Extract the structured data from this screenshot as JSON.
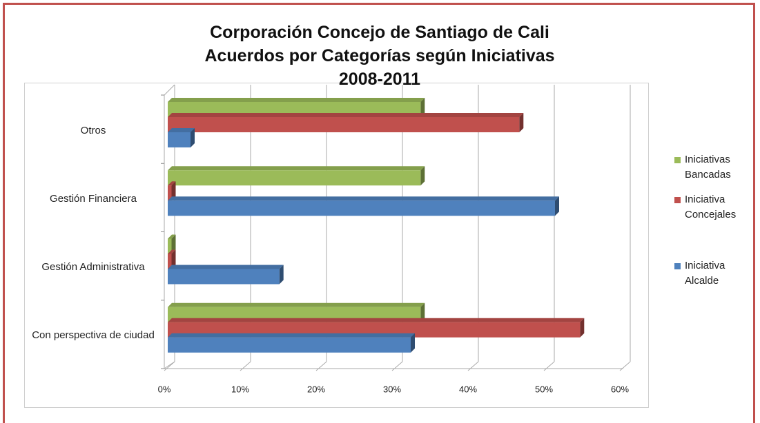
{
  "chart_data": {
    "type": "bar3d-horizontal",
    "title": "Corporación Concejo de Santiago de Cali\nAcuerdos por Categorías según Iniciativas\n2008-2011",
    "categories": [
      "Con perspectiva de ciudad",
      "Gestión Administrativa",
      "Gestión Financiera",
      "Otros"
    ],
    "series": [
      {
        "name": "Iniciativas Bancadas",
        "color": "#9bbb59",
        "values": [
          33.3,
          0.5,
          33.3,
          33.3
        ]
      },
      {
        "name": "Iniciativa Concejales",
        "color": "#c0504d",
        "values": [
          54.3,
          0.5,
          0.5,
          46.3
        ]
      },
      {
        "name": "Iniciativa Alcalde",
        "color": "#4f81bd",
        "values": [
          32,
          14.7,
          51,
          3
        ]
      }
    ],
    "xlim": [
      0,
      60
    ],
    "xticks": [
      {
        "value": 0,
        "label": "0%"
      },
      {
        "value": 10,
        "label": "10%"
      },
      {
        "value": 20,
        "label": "20%"
      },
      {
        "value": 30,
        "label": "30%"
      },
      {
        "value": 40,
        "label": "40%"
      },
      {
        "value": 50,
        "label": "50%"
      },
      {
        "value": 60,
        "label": "60%"
      }
    ],
    "grid": true
  }
}
